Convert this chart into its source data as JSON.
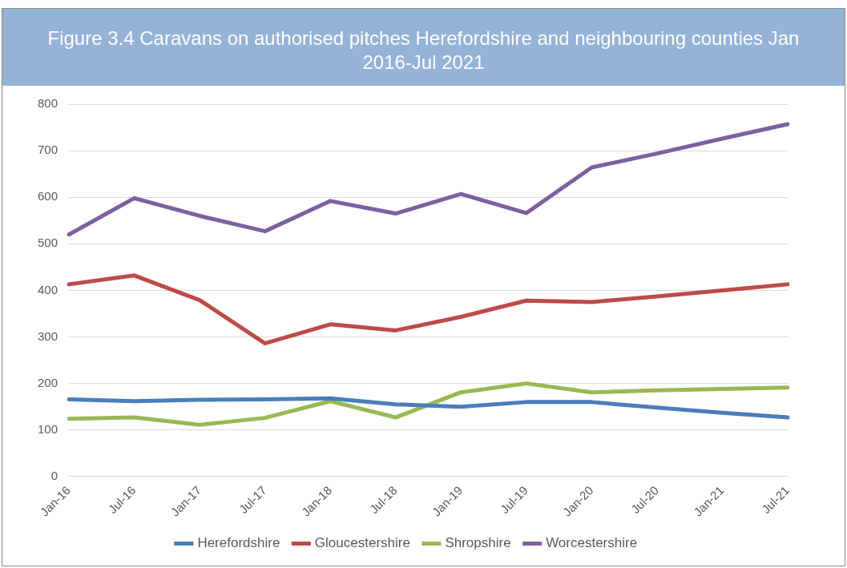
{
  "chart_data": {
    "type": "line",
    "title": "Figure 3.4 Caravans on authorised pitches Herefordshire and neighbouring counties Jan 2016-Jul 2021",
    "categories": [
      "Jan-16",
      "Jul-16",
      "Jan-17",
      "Jul-17",
      "Jan-18",
      "Jul-18",
      "Jan-19",
      "Jul-19",
      "Jan-20",
      "Jul-20",
      "Jan-21",
      "Jul-21"
    ],
    "series": [
      {
        "name": "Herefordshire",
        "color": "#4a7ebb",
        "values": [
          166,
          162,
          165,
          166,
          168,
          155,
          150,
          160,
          160,
          148,
          137,
          127
        ]
      },
      {
        "name": "Gloucestershire",
        "color": "#be4b48",
        "values": [
          413,
          432,
          379,
          286,
          327,
          314,
          343,
          378,
          375,
          387,
          400,
          413
        ]
      },
      {
        "name": "Shropshire",
        "color": "#98b954",
        "values": [
          124,
          127,
          111,
          126,
          162,
          127,
          181,
          200,
          181,
          185,
          188,
          191
        ]
      },
      {
        "name": "Worcestershire",
        "color": "#7d60a0",
        "values": [
          520,
          598,
          560,
          527,
          592,
          565,
          607,
          566,
          664,
          694,
          726,
          757
        ]
      }
    ],
    "ylim": [
      0,
      800
    ],
    "yticks": [
      0,
      100,
      200,
      300,
      400,
      500,
      600,
      700,
      800
    ],
    "grid": "y",
    "legend": "bottom",
    "marker": "none",
    "line_style": "solid"
  }
}
